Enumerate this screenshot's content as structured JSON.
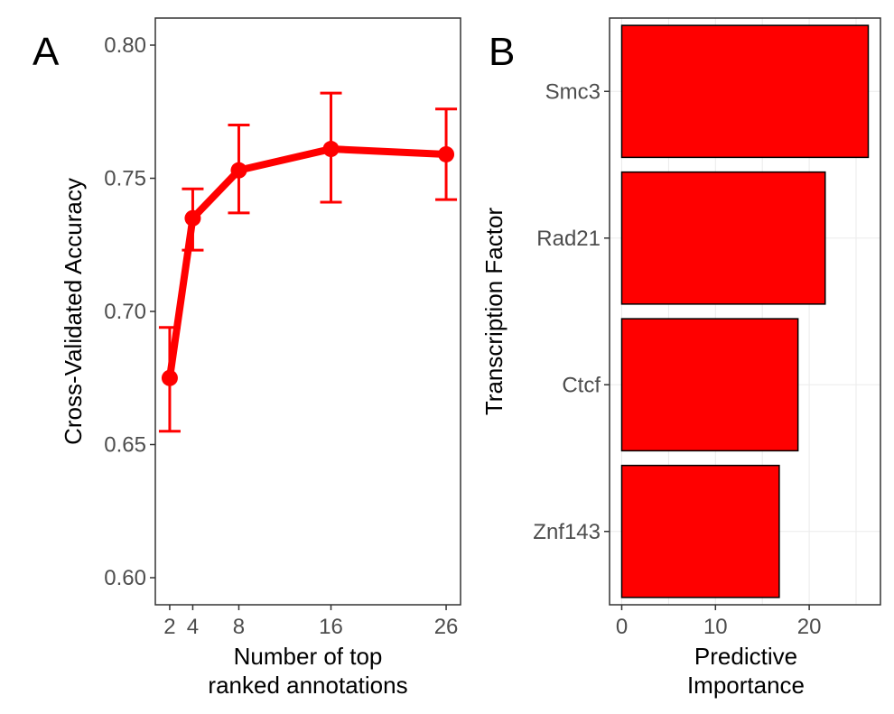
{
  "chart_data": [
    {
      "panel": "A",
      "type": "line",
      "x": [
        2,
        4,
        8,
        16,
        26
      ],
      "y": [
        0.675,
        0.735,
        0.753,
        0.761,
        0.759
      ],
      "error_low": [
        0.655,
        0.723,
        0.737,
        0.741,
        0.742
      ],
      "error_high": [
        0.694,
        0.746,
        0.77,
        0.782,
        0.776
      ],
      "xlabel": [
        "Number of top",
        "ranked annotations"
      ],
      "ylabel": "Cross-Validated Accuracy",
      "xticks": [
        "2",
        "4",
        "8",
        "16",
        "26"
      ],
      "yticks": [
        "0.60",
        "0.65",
        "0.70",
        "0.75",
        "0.80"
      ],
      "ylim": [
        0.6,
        0.8
      ],
      "grid": false,
      "color": "#ff0000"
    },
    {
      "panel": "B",
      "type": "bar",
      "orientation": "horizontal",
      "categories": [
        "Smc3",
        "Rad21",
        "Ctcf",
        "Znf143"
      ],
      "values": [
        26.3,
        21.7,
        18.8,
        16.8
      ],
      "xlabel": [
        "Predictive",
        "Importance"
      ],
      "ylabel": "Transcription Factor",
      "xticks": [
        "0",
        "10",
        "20"
      ],
      "grid": true,
      "color": "#ff0000"
    }
  ]
}
